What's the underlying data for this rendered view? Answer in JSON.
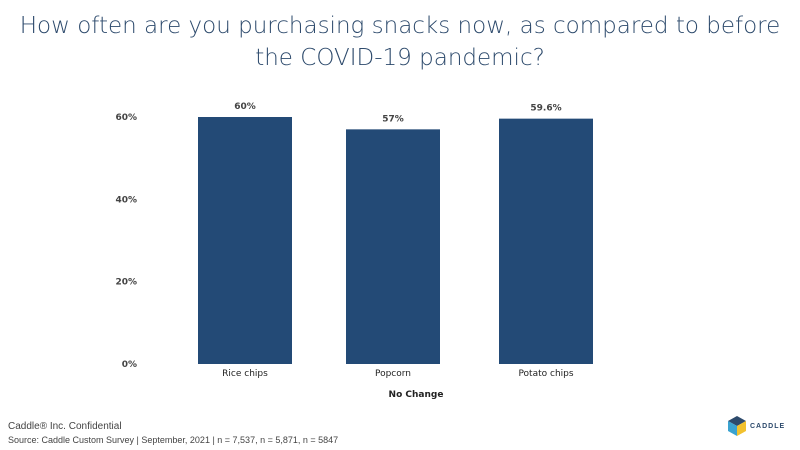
{
  "title": "How often are you purchasing snacks now, as compared to before the COVID-19 pandemic?",
  "footer": {
    "confidential": "Caddle® Inc. Confidential",
    "source": "Source: Caddle Custom Survey | September, 2021 | n = 7,537, n = 5,871, n = 5847",
    "logo_text": "CADDLE"
  },
  "chart_data": {
    "type": "bar",
    "title": "How often are you purchasing snacks now, as compared to before the COVID-19 pandemic?",
    "xlabel": "No Change",
    "ylabel": "",
    "categories": [
      "Rice chips",
      "Popcorn",
      "Potato chips"
    ],
    "values": [
      60,
      57,
      59.6
    ],
    "data_labels": [
      "60%",
      "57%",
      "59.6%"
    ],
    "ylim": [
      0,
      60
    ],
    "yticks": [
      0,
      20,
      40,
      60
    ],
    "ytick_labels": [
      "0%",
      "20%",
      "40%",
      "60%"
    ],
    "grid": false,
    "bar_color": "#234a76"
  }
}
